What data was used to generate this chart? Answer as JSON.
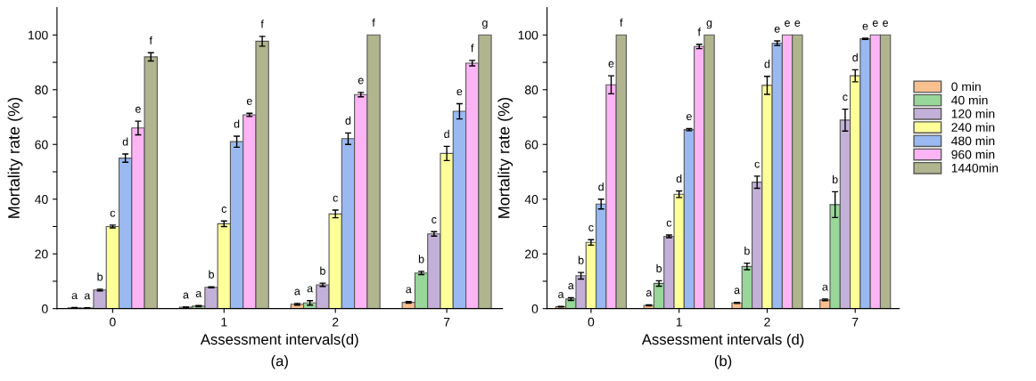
{
  "chart_data": [
    {
      "type": "bar",
      "categories": [
        "0",
        "1",
        "2",
        "7"
      ],
      "xlabel": "Assessment intervals(d)",
      "ylabel": "Mortality rate (%)",
      "ylim": [
        0,
        110
      ],
      "yticks": [
        0,
        {
          "value": 10,
          "label": null
        },
        20,
        {
          "value": 30,
          "label": null
        },
        40,
        {
          "value": 50,
          "label": null
        },
        60,
        {
          "value": 70,
          "label": null
        },
        80,
        {
          "value": 90,
          "label": null
        },
        100
      ],
      "legend": false,
      "annotations": [
        "(a)"
      ],
      "series": [
        {
          "color": "#f9c08f",
          "values": [
            0.3,
            0.5,
            1.6,
            2.3
          ],
          "errors": [
            0.1,
            0.1,
            0.3,
            0.3
          ],
          "value_labels": [
            "a",
            "a",
            "a",
            "a"
          ]
        },
        {
          "color": "#98d699",
          "values": [
            0.2,
            0.9,
            2.1,
            13
          ],
          "errors": [
            0.1,
            0.2,
            0.8,
            0.6
          ],
          "value_labels": [
            "a",
            "a",
            "a",
            "b"
          ]
        },
        {
          "color": "#c3b0d8",
          "values": [
            6.8,
            7.8,
            8.7,
            27.3
          ],
          "errors": [
            0.3,
            0.2,
            0.6,
            0.8
          ],
          "value_labels": [
            "b",
            "b",
            "b",
            "c"
          ]
        },
        {
          "color": "#ffff99",
          "values": [
            30,
            31,
            34.6,
            56.7
          ],
          "errors": [
            0.5,
            1,
            1.4,
            2.6
          ],
          "value_labels": [
            "c",
            "c",
            "c",
            "d"
          ]
        },
        {
          "color": "#99b9f0",
          "values": [
            55,
            61,
            62.1,
            72.1
          ],
          "errors": [
            1.5,
            2,
            2.1,
            2.8
          ],
          "value_labels": [
            "d",
            "d",
            "d",
            "e"
          ]
        },
        {
          "color": "#fdb4f4",
          "values": [
            66,
            70.8,
            78.2,
            89.7
          ],
          "errors": [
            2.5,
            0.6,
            0.8,
            1
          ],
          "value_labels": [
            "e",
            "e",
            "e",
            "f"
          ]
        },
        {
          "color": "#b1b58e",
          "values": [
            92,
            97.7,
            100,
            100
          ],
          "errors": [
            1.5,
            1.8,
            null,
            null
          ],
          "value_labels": [
            "f",
            "f",
            "f",
            "g"
          ]
        }
      ]
    },
    {
      "type": "bar",
      "categories": [
        "0",
        "1",
        "2",
        "7"
      ],
      "xlabel": "Assessment intervals (d)",
      "ylabel": "Mortality rate (%)",
      "ylim": [
        0,
        110
      ],
      "yticks": [
        0,
        {
          "value": 10,
          "label": null
        },
        20,
        {
          "value": 30,
          "label": null
        },
        40,
        {
          "value": 50,
          "label": null
        },
        60,
        {
          "value": 70,
          "label": null
        },
        80,
        {
          "value": 90,
          "label": null
        },
        100
      ],
      "legend": "right",
      "annotations": [
        "(b)"
      ],
      "series": [
        {
          "name": "0 min",
          "color": "#f9c08f",
          "values": [
            0.7,
            1.2,
            2.1,
            3.2
          ],
          "errors": [
            0.1,
            0.2,
            0.2,
            0.3
          ],
          "value_labels": [
            "a",
            "a",
            "a",
            "a"
          ]
        },
        {
          "name": "40 min",
          "color": "#98d699",
          "values": [
            3.5,
            9.2,
            15.4,
            38
          ],
          "errors": [
            0.5,
            1,
            1.2,
            4.7
          ],
          "value_labels": [
            "a",
            "b",
            "b",
            "b"
          ]
        },
        {
          "name": "120 min",
          "color": "#c3b0d8",
          "values": [
            12,
            26.4,
            46.2,
            68.9
          ],
          "errors": [
            1.2,
            0.5,
            2.2,
            4
          ],
          "value_labels": [
            "b",
            "c",
            "c",
            "c"
          ]
        },
        {
          "name": "240 min",
          "color": "#ffff99",
          "values": [
            24.2,
            41.8,
            81.6,
            85.1
          ],
          "errors": [
            1,
            1.2,
            3.3,
            2.2
          ],
          "value_labels": [
            "c",
            "d",
            "d",
            "d"
          ]
        },
        {
          "name": "480 min",
          "color": "#99b9f0",
          "values": [
            38.2,
            65.4,
            97,
            98.6
          ],
          "errors": [
            1.8,
            0.4,
            0.8,
            0.2
          ],
          "value_labels": [
            "d",
            "e",
            "e",
            "e"
          ]
        },
        {
          "name": "960 min",
          "color": "#fdb4f4",
          "values": [
            81.8,
            95.8,
            100,
            100
          ],
          "errors": [
            3.3,
            0.8,
            null,
            null
          ],
          "value_labels": [
            "e",
            "f",
            "e",
            "e"
          ]
        },
        {
          "name": "1440min",
          "color": "#b1b58e",
          "values": [
            100,
            100,
            100,
            100
          ],
          "errors": [
            null,
            null,
            null,
            null
          ],
          "value_labels": [
            "f",
            "g",
            "e",
            "e"
          ]
        }
      ]
    }
  ]
}
